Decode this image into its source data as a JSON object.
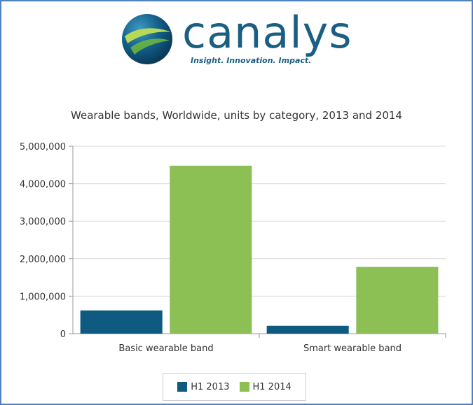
{
  "logo": {
    "wordmark": "canalys",
    "tagline": "Insight. Innovation. Impact."
  },
  "colors": {
    "series_2013": "#0e5a80",
    "series_2014": "#8cbf54",
    "brand": "#1a5f83",
    "frame": "#4f81bd"
  },
  "chart_data": {
    "type": "bar",
    "title": "Wearable bands, Worldwide, units by category, 2013 and 2014",
    "categories": [
      "Basic wearable band",
      "Smart wearable band"
    ],
    "series": [
      {
        "name": "H1 2013",
        "values": [
          620000,
          210000
        ]
      },
      {
        "name": "H1 2014",
        "values": [
          4480000,
          1780000
        ]
      }
    ],
    "yticks": [
      "0",
      "1,000,000",
      "2,000,000",
      "3,000,000",
      "4,000,000",
      "5,000,000"
    ],
    "ylim": [
      0,
      5000000
    ],
    "xlabel": "",
    "ylabel": "",
    "grid": true,
    "legend_position": "bottom"
  }
}
